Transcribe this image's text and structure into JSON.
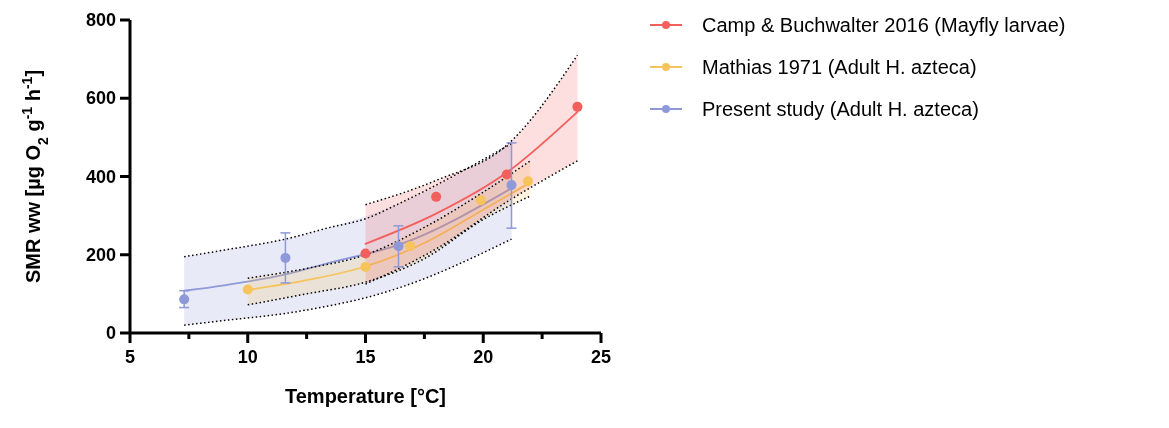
{
  "chart_data": {
    "type": "scatter",
    "xlabel": "Temperature [°C]",
    "ylabel": "SMR ww [µg O$_{2}$ g$^{-1}$ h$^{-1}$]",
    "xlim": [
      5,
      25
    ],
    "xticks": [
      5,
      {
        "value": 7.5,
        "label": null
      },
      10,
      {
        "value": 12.5,
        "label": null
      },
      15,
      {
        "value": 17.5,
        "label": null
      },
      20,
      {
        "value": 22.5,
        "label": null
      },
      25
    ],
    "ylim": [
      0,
      800
    ],
    "yticks": [
      0,
      200,
      400,
      600,
      800
    ],
    "grid": false,
    "legend": "top right",
    "marker": "circle",
    "series": [
      {
        "type": "line",
        "marker": "none",
        "color": "#8f98d8",
        "x": [
          7.3,
          9,
          11.6,
          13.5,
          16.4,
          21.2
        ],
        "values": [
          108,
          122,
          150,
          180,
          225,
          370
        ],
        "lower": [
          20,
          32,
          50,
          70,
          115,
          240
        ],
        "upper": [
          195,
          212,
          240,
          270,
          330,
          484
        ]
      },
      {
        "type": "line",
        "marker": "none",
        "color": "#f7c35c",
        "x": [
          10,
          12.5,
          15,
          17.5,
          20,
          22
        ],
        "values": [
          110,
          135,
          170,
          230,
          315,
          385
        ],
        "lower": [
          72,
          100,
          130,
          190,
          290,
          350
        ],
        "upper": [
          140,
          165,
          200,
          270,
          360,
          440
        ]
      },
      {
        "type": "line",
        "marker": "none",
        "color": "#f25f5c",
        "x": [
          15,
          18,
          21,
          24
        ],
        "values": [
          228,
          305,
          410,
          565
        ],
        "lower": [
          125,
          215,
          335,
          440
        ],
        "upper": [
          328,
          390,
          480,
          710
        ]
      },
      {
        "type": "line",
        "marker": "none",
        "line_style": "dotted",
        "color": "#000000",
        "x": [
          7.3,
          9,
          11.6,
          13.5,
          15,
          16.4,
          21.2
        ],
        "values": [
          20,
          32,
          50,
          70,
          90,
          115,
          240
        ]
      },
      {
        "type": "line",
        "marker": "none",
        "line_style": "dotted",
        "color": "#000000",
        "x": [
          7.3,
          9,
          11.6,
          13.5,
          15,
          16.4,
          21.2
        ],
        "values": [
          195,
          212,
          240,
          270,
          292,
          330,
          484
        ]
      },
      {
        "type": "line",
        "marker": "none",
        "line_style": "dotted",
        "color": "#000000",
        "x": [
          10,
          12.5,
          15,
          17.5,
          20,
          22
        ],
        "values": [
          72,
          100,
          130,
          190,
          290,
          350
        ]
      },
      {
        "type": "line",
        "marker": "none",
        "line_style": "dotted",
        "color": "#000000",
        "x": [
          10,
          12.5,
          15,
          17.5,
          20,
          22
        ],
        "values": [
          140,
          165,
          200,
          270,
          360,
          440
        ]
      },
      {
        "type": "line",
        "marker": "none",
        "line_style": "dotted",
        "color": "#000000",
        "x": [
          15,
          18,
          21,
          24
        ],
        "values": [
          125,
          215,
          335,
          440
        ]
      },
      {
        "type": "line",
        "marker": "none",
        "line_style": "dotted",
        "color": "#000000",
        "x": [
          15,
          18,
          21,
          24
        ],
        "values": [
          328,
          390,
          480,
          710
        ]
      },
      {
        "name": "Camp & Buchwalter 2016 (Mayfly larvae)",
        "color": "#f25f5c",
        "x": [
          15,
          18,
          21,
          24
        ],
        "values": [
          203,
          348,
          405,
          578
        ]
      },
      {
        "name": "Mathias 1971 (Adult H. azteca)",
        "color": "#f7c35c",
        "x": [
          10,
          15,
          16.9,
          19.9,
          21.9
        ],
        "values": [
          111,
          169,
          222,
          339,
          388
        ]
      },
      {
        "name": "Present study (Adult H. azteca)",
        "color": "#8f98d8",
        "x": [
          7.3,
          11.6,
          16.4,
          21.2
        ],
        "values": [
          86,
          192,
          222,
          378
        ],
        "errors": [
          [
            65,
            108
          ],
          [
            128,
            256
          ],
          [
            169,
            274
          ],
          [
            268,
            486
          ]
        ]
      }
    ]
  }
}
